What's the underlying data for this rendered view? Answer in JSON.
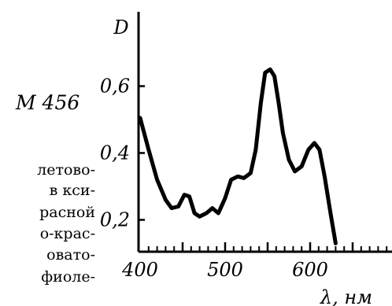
{
  "book_text": {
    "label": "М 456",
    "lines": [
      "летово-",
      "в кси-",
      "расной",
      "о-крас-",
      "овато-",
      "фиоле-"
    ]
  },
  "chart_data": {
    "type": "line",
    "xlabel": "λ, нм",
    "ylabel": "D",
    "xlim": [
      400,
      640
    ],
    "ylim": [
      0.1,
      0.7
    ],
    "x_ticks": [
      400,
      500,
      600
    ],
    "y_ticks": [
      0.2,
      0.4,
      0.6
    ],
    "y_tick_labels": [
      "0,2",
      "0,4",
      "0,6"
    ],
    "grid": false,
    "series": [
      {
        "points": [
          [
            400,
            0.505
          ],
          [
            410,
            0.41
          ],
          [
            420,
            0.32
          ],
          [
            430,
            0.26
          ],
          [
            437,
            0.235
          ],
          [
            445,
            0.24
          ],
          [
            452,
            0.275
          ],
          [
            458,
            0.27
          ],
          [
            464,
            0.22
          ],
          [
            470,
            0.21
          ],
          [
            478,
            0.22
          ],
          [
            485,
            0.235
          ],
          [
            492,
            0.22
          ],
          [
            500,
            0.265
          ],
          [
            507,
            0.32
          ],
          [
            515,
            0.33
          ],
          [
            522,
            0.325
          ],
          [
            530,
            0.34
          ],
          [
            536,
            0.41
          ],
          [
            542,
            0.55
          ],
          [
            547,
            0.64
          ],
          [
            553,
            0.65
          ],
          [
            558,
            0.63
          ],
          [
            563,
            0.55
          ],
          [
            568,
            0.46
          ],
          [
            575,
            0.38
          ],
          [
            582,
            0.345
          ],
          [
            590,
            0.36
          ],
          [
            598,
            0.41
          ],
          [
            605,
            0.43
          ],
          [
            611,
            0.41
          ],
          [
            617,
            0.33
          ],
          [
            624,
            0.22
          ],
          [
            630,
            0.13
          ]
        ],
        "color": "#000000"
      }
    ]
  }
}
